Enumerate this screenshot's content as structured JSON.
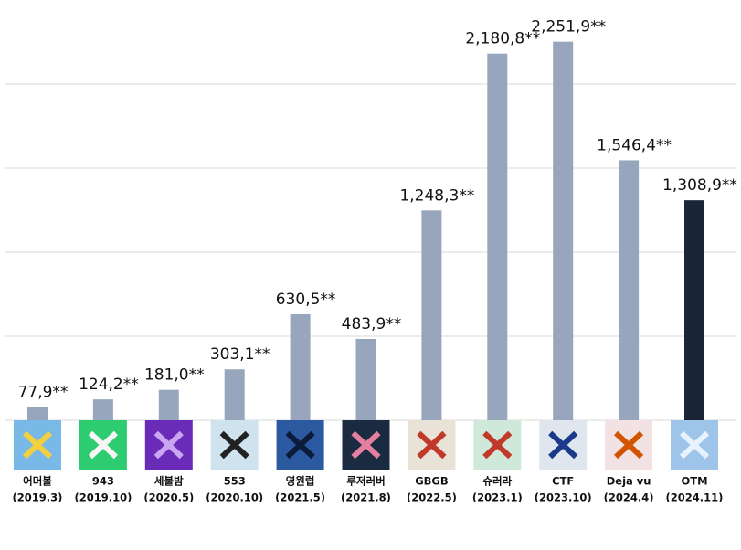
{
  "chart_data": {
    "type": "bar",
    "categories": [
      "어머볼",
      "943",
      "세불밤",
      "553",
      "영원럽",
      "루저러버",
      "GBGB",
      "슈러라",
      "CTF",
      "Deja vu",
      "OTM"
    ],
    "category_dates": [
      "(2019.3)",
      "(2019.10)",
      "(2020.5)",
      "(2020.10)",
      "(2021.5)",
      "(2021.8)",
      "(2022.5)",
      "(2023.1)",
      "(2023.10)",
      "(2024.4)",
      "(2024.11)"
    ],
    "values": [
      77.9,
      124.2,
      181.0,
      303.1,
      630.5,
      483.9,
      1248.3,
      2180.8,
      2251.9,
      1546.4,
      1308.9
    ],
    "value_labels": [
      "77,9**",
      "124,2**",
      "181,0**",
      "303,1**",
      "630,5**",
      "483,9**",
      "1,248,3**",
      "2,180,8**",
      "2,251,9**",
      "1,546,4**",
      "1,308,9**"
    ],
    "colors": [
      "#97a6bd",
      "#97a6bd",
      "#97a6bd",
      "#97a6bd",
      "#97a6bd",
      "#97a6bd",
      "#97a6bd",
      "#97a6bd",
      "#97a6bd",
      "#97a6bd",
      "#1a2638"
    ],
    "ylim": [
      0,
      2500
    ],
    "yticks": [
      0,
      500,
      1000,
      1500,
      2000
    ],
    "grid": true
  }
}
